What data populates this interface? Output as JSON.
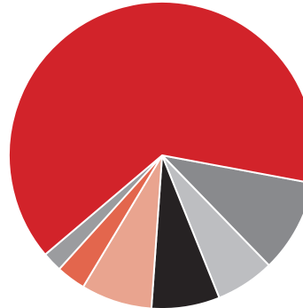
{
  "chart_data": {
    "type": "pie",
    "title": "",
    "start_angle_deg": 10.5,
    "direction": "clockwise",
    "slices": [
      {
        "label": "",
        "value": 9.8,
        "color": "#898a8d"
      },
      {
        "label": "",
        "value": 6.2,
        "color": "#bdbec1"
      },
      {
        "label": "",
        "value": 7.2,
        "color": "#262223"
      },
      {
        "label": "",
        "value": 7.5,
        "color": "#e9a48f"
      },
      {
        "label": "",
        "value": 3.1,
        "color": "#e3664d"
      },
      {
        "label": "",
        "value": 2.1,
        "color": "#9b9c9f"
      },
      {
        "label": "",
        "value": 64.1,
        "color": "#d2232a"
      }
    ]
  }
}
